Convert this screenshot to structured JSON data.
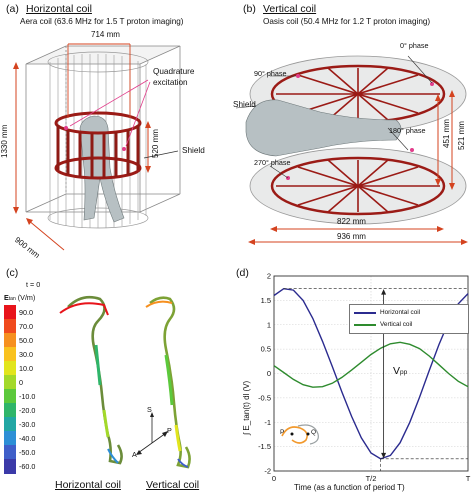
{
  "panel_a": {
    "label": "(a)",
    "title": "Horizontal coil",
    "subtitle": "Aera coil (63.6 MHz for 1.5 T proton imaging)",
    "dim_width": "714 mm",
    "dim_height": "1330 mm",
    "dim_coil": "520 mm",
    "dim_depth": "900 mm",
    "label_quadrature": "Quadrature",
    "label_excitation": "excitation",
    "label_shield": "Shield"
  },
  "panel_b": {
    "label": "(b)",
    "title": "Vertical coil",
    "subtitle": "Oasis coil (50.4 MHz for 1.2 T proton imaging)",
    "phase_0": "0° phase",
    "phase_90": "90° phase",
    "phase_180": "180° phase",
    "phase_270": "270° phase",
    "label_shield": "Shield",
    "dim_521": "521 mm",
    "dim_451": "451 mm",
    "dim_822": "822 mm",
    "dim_936": "936 mm"
  },
  "panel_c": {
    "label": "(c)",
    "time": "t = 0",
    "cbar_title": "E",
    "cbar_sub": "tan",
    "cbar_unit": "(V/m)",
    "cbar_ticks": [
      "90.0",
      "70.0",
      "50.0",
      "30.0",
      "10.0",
      "0",
      "-10.0",
      "-20.0",
      "-30.0",
      "-40.0",
      "-50.0",
      "-60.0"
    ],
    "cbar_colors": [
      "#e8141b",
      "#f04a1d",
      "#f6901f",
      "#f9c21f",
      "#e2e51d",
      "#a3d92a",
      "#5cc93c",
      "#2fb56a",
      "#22a7a4",
      "#2d8fd6",
      "#3f5fc9",
      "#3b3aa8"
    ],
    "axis_s": "S",
    "axis_p": "P",
    "axis_a": "A",
    "caption_left": "Horizontal coil",
    "caption_right": "Vertical coil"
  },
  "panel_d": {
    "label": "(d)",
    "vpp": "V",
    "vpp_sub": "pp",
    "inset_p": "P",
    "inset_q": "Q",
    "legend_colors": [
      "#2b2b8f",
      "#2e8b2e"
    ]
  },
  "chart_data": {
    "type": "line",
    "title": "",
    "xlabel": "Time (as a function of period T)",
    "ylabel": "∫ E_tan(t) dl (V)",
    "xlim": [
      0,
      1
    ],
    "ylim": [
      -2,
      2
    ],
    "x_ticks": [
      "0",
      "T/2",
      "T"
    ],
    "y_ticks": [
      "2",
      "1.5",
      "1",
      "0.5",
      "0",
      "-0.5",
      "-1",
      "-1.5",
      "-2"
    ],
    "grid": true,
    "legend": "top-right",
    "x": [
      0,
      0.05,
      0.1,
      0.15,
      0.2,
      0.25,
      0.3,
      0.35,
      0.4,
      0.45,
      0.5,
      0.55,
      0.6,
      0.65,
      0.7,
      0.75,
      0.8,
      0.85,
      0.9,
      0.95,
      1.0
    ],
    "series": [
      {
        "name": "Horizontal coil",
        "values": [
          1.6,
          1.74,
          1.71,
          1.5,
          1.13,
          0.66,
          0.15,
          -0.38,
          -0.88,
          -1.32,
          -1.63,
          -1.75,
          -1.68,
          -1.42,
          -1.0,
          -0.49,
          0.06,
          0.59,
          1.06,
          1.43,
          1.64
        ]
      },
      {
        "name": "Vertical coil",
        "values": [
          0.16,
          0.02,
          -0.12,
          -0.23,
          -0.28,
          -0.27,
          -0.2,
          -0.08,
          0.07,
          0.23,
          0.39,
          0.52,
          0.61,
          0.64,
          0.6,
          0.51,
          0.36,
          0.18,
          0.0,
          -0.16,
          -0.27
        ]
      }
    ]
  }
}
